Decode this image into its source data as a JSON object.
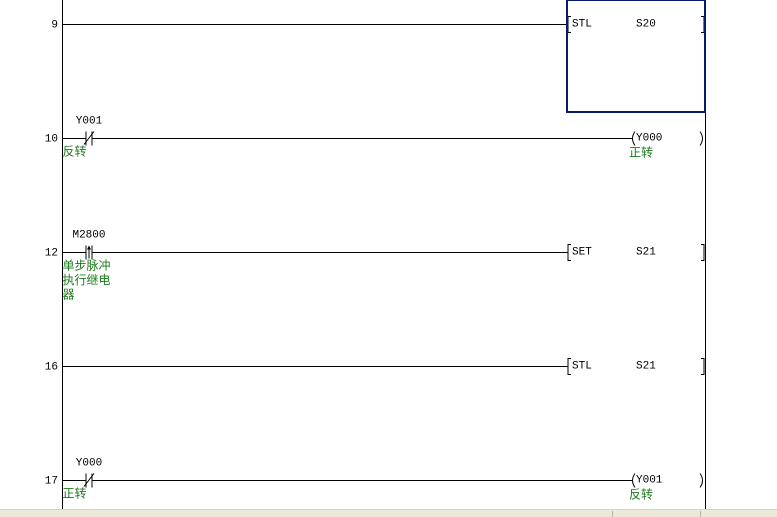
{
  "colors": {
    "cursor": "#0a1a6e",
    "comment": "#1a7a1a",
    "line": "#000000"
  },
  "rungs": [
    {
      "step": "9",
      "contact": null,
      "output": {
        "type": "instruction",
        "op": "STL",
        "operand": "S20"
      }
    },
    {
      "step": "10",
      "contact": {
        "type": "nc",
        "device": "Y001",
        "comment": [
          "反转"
        ]
      },
      "output": {
        "type": "coil",
        "device": "Y000",
        "comment": "正转"
      }
    },
    {
      "step": "12",
      "contact": {
        "type": "pulse-rise",
        "device": "M2800",
        "comment": [
          "单步脉冲",
          "执行继电",
          "器"
        ]
      },
      "output": {
        "type": "instruction",
        "op": "SET",
        "operand": "S21"
      }
    },
    {
      "step": "16",
      "contact": null,
      "output": {
        "type": "instruction",
        "op": "STL",
        "operand": "S21"
      }
    },
    {
      "step": "17",
      "contact": {
        "type": "nc",
        "device": "Y000",
        "comment": [
          "正转"
        ]
      },
      "output": {
        "type": "coil",
        "device": "Y001",
        "comment": "反转"
      }
    }
  ],
  "cursor_rung": 0
}
